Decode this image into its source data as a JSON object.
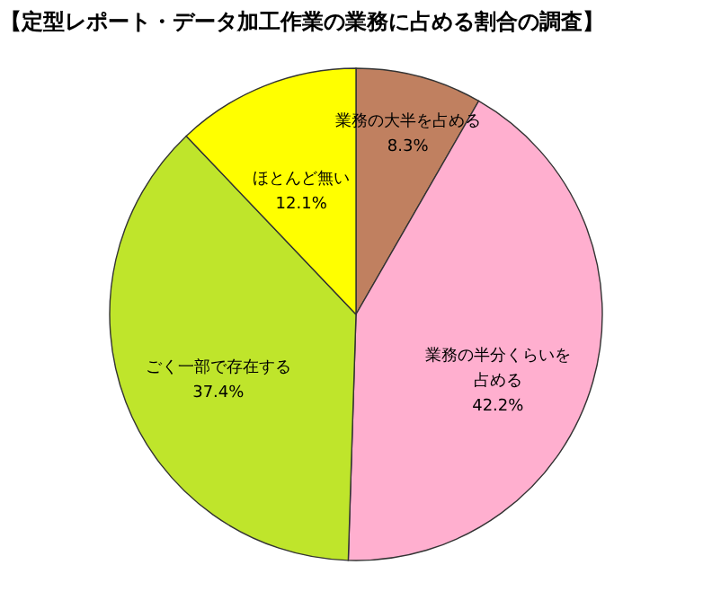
{
  "chart_data": {
    "type": "pie",
    "title": "【定型レポート・データ加工作業の業務に占める割合の調査】",
    "categories": [
      "業務の大半を占める",
      "業務の半分くらいを占める",
      "ごく一部で存在する",
      "ほとんど無い"
    ],
    "values": [
      8.3,
      42.2,
      37.4,
      12.1
    ],
    "colors": [
      "#c08060",
      "#ffafcf",
      "#bfe52b",
      "#ffff00"
    ],
    "value_labels": [
      "8.3%",
      "42.2%",
      "37.4%",
      "12.1%"
    ],
    "legend": false
  }
}
